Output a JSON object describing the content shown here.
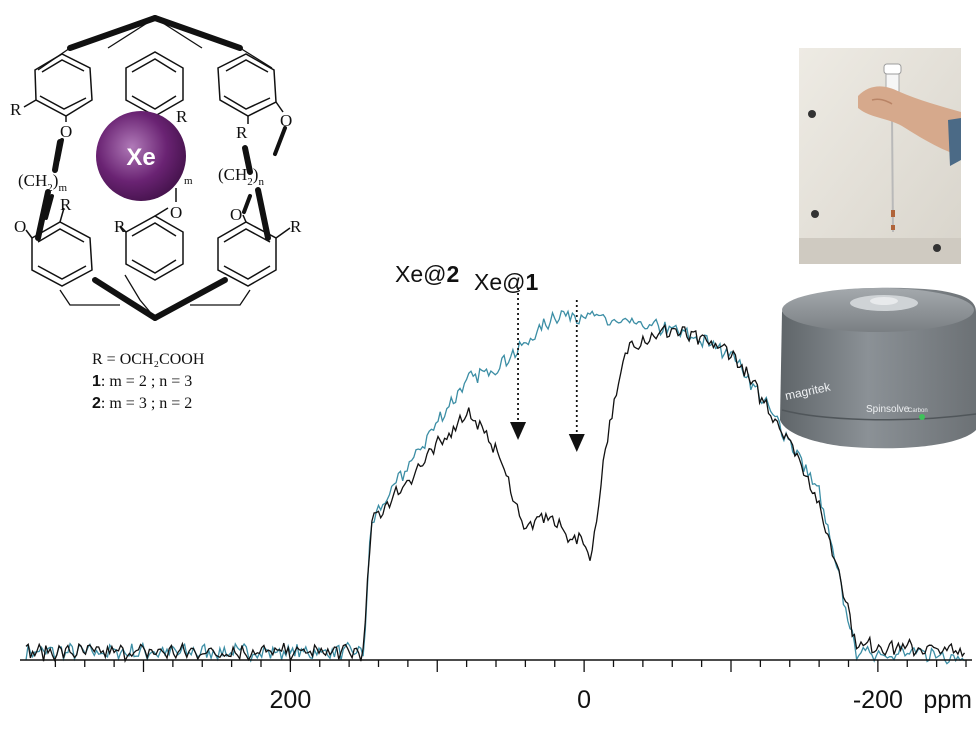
{
  "molecule": {
    "guest_label": "Xe",
    "substituent_label": "R",
    "oxygen_label": "O",
    "linker_left": "(CH",
    "linker_left_sub": "2",
    "linker_left_close": ")",
    "linker_left_index": "m",
    "linker_right": "(CH",
    "linker_right_sub": "2",
    "linker_right_close": ")",
    "linker_right_index": "n",
    "inner_index": "m"
  },
  "legend": {
    "r_def": "R = OCH₂COOH",
    "c1_num": "1",
    "c1_rest": ": m = 2 ; n = 3",
    "c2_num": "2",
    "c2_rest": ": m = 3 ; n = 2"
  },
  "photos": {
    "top": "NMR tube held in hand",
    "bottom_brand": "magritek",
    "bottom_model": "Spinsolve",
    "bottom_variant": "Carbon"
  },
  "chart_data": {
    "type": "line",
    "title": "",
    "xlabel": "ppm",
    "ylabel": "",
    "xlim": [
      380,
      -260
    ],
    "x_reversed": true,
    "xticks": [
      200,
      0,
      -200
    ],
    "xtick_labels": [
      "200",
      "0",
      "-200"
    ],
    "colors": {
      "black": "#111111",
      "blue": "#3c8ea5"
    },
    "series": [
      {
        "x": [
          380,
          150,
          145,
          90,
          80,
          60,
          40,
          25,
          10,
          0,
          -5,
          -15,
          -30,
          -60,
          -100,
          -140,
          -155,
          -175,
          -185,
          -260
        ],
        "y": [
          0.05,
          0.05,
          0.4,
          0.65,
          0.7,
          0.6,
          0.38,
          0.42,
          0.36,
          0.35,
          0.3,
          0.62,
          0.88,
          0.92,
          0.86,
          0.62,
          0.5,
          0.25,
          0.07,
          0.05
        ]
      },
      {
        "x": [
          380,
          150,
          145,
          95,
          80,
          60,
          40,
          20,
          0,
          -20,
          -40,
          -60,
          -100,
          -140,
          -160,
          -175,
          -185,
          -260
        ],
        "y": [
          0.05,
          0.05,
          0.4,
          0.7,
          0.78,
          0.82,
          0.88,
          0.96,
          0.96,
          0.94,
          0.93,
          0.92,
          0.86,
          0.62,
          0.48,
          0.22,
          0.05,
          0.04
        ]
      }
    ],
    "annotations": [
      {
        "label_prefix": "Xe@",
        "label_num": "2",
        "x": 45
      },
      {
        "label_prefix": "Xe@",
        "label_num": "1",
        "x": 5
      }
    ]
  }
}
